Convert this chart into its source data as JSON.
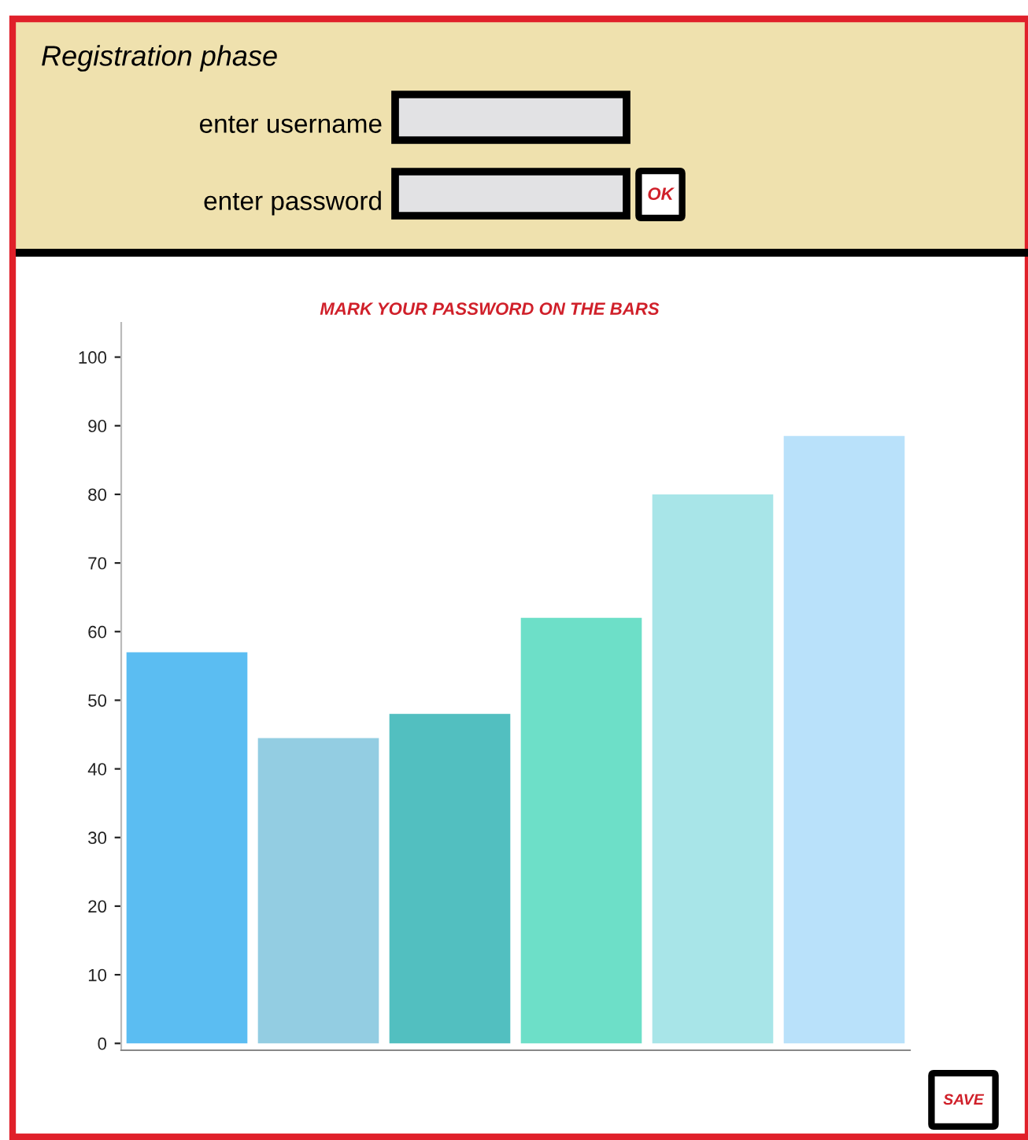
{
  "chart_data": {
    "type": "bar",
    "title": "MARK YOUR PASSWORD ON THE BARS",
    "categories": [
      null,
      null,
      null,
      null,
      null,
      null
    ],
    "values": [
      57,
      44.5,
      48,
      62,
      80,
      88.5
    ],
    "colors": [
      "#5bbdf2",
      "#93cde2",
      "#52bfc0",
      "#6ddfc8",
      "#a8e5e8",
      "#b9e1fa"
    ],
    "ylim": [
      -1,
      105
    ],
    "yticks": [
      0,
      10,
      20,
      30,
      40,
      50,
      60,
      70,
      80,
      90,
      100
    ],
    "grid": false,
    "legend": false,
    "annotations": [
      "Registration phase",
      "enter username",
      "enter password",
      "OK",
      "SAVE"
    ]
  }
}
